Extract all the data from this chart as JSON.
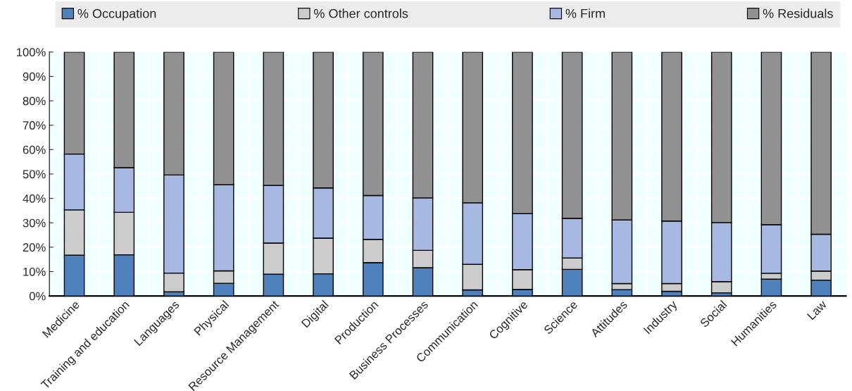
{
  "chart_data": {
    "type": "bar",
    "stacked": true,
    "categories": [
      "Medicine",
      "Training and education",
      "Languages",
      "Physical",
      "Resource Management",
      "Digital",
      "Production",
      "Business Processes",
      "Communication",
      "Cognitive",
      "Science",
      "Attitudes",
      "Industry",
      "Social",
      "Humanities",
      "Law"
    ],
    "series": [
      {
        "name": "% Occupation",
        "color": "#4f81bd",
        "values": [
          16.7,
          16.9,
          1.7,
          5.2,
          8.9,
          9.1,
          13.7,
          11.6,
          2.5,
          2.7,
          10.9,
          2.6,
          1.9,
          1.3,
          6.9,
          6.5
        ]
      },
      {
        "name": "% Other controls",
        "color": "#cccccc",
        "values": [
          18.6,
          17.4,
          7.7,
          5.1,
          12.8,
          14.6,
          9.5,
          7.1,
          10.5,
          8.1,
          4.7,
          2.5,
          3.2,
          4.6,
          2.4,
          3.7
        ]
      },
      {
        "name": "% Firm",
        "color": "#a7b8e3",
        "values": [
          22.9,
          18.3,
          40.2,
          35.3,
          23.6,
          20.6,
          18.0,
          21.5,
          25.2,
          23.0,
          16.2,
          26.1,
          25.6,
          24.2,
          19.9,
          15.1
        ]
      },
      {
        "name": "% Residuals",
        "color": "#919191",
        "values": [
          41.8,
          47.4,
          50.4,
          54.4,
          54.7,
          55.7,
          58.8,
          59.8,
          61.8,
          66.2,
          68.2,
          68.8,
          69.3,
          69.9,
          70.8,
          74.7
        ]
      }
    ],
    "ylim": [
      0,
      100
    ],
    "yticks": [
      {
        "value": 0,
        "label": "0%"
      },
      {
        "value": 10,
        "label": "10%"
      },
      {
        "value": 20,
        "label": "20%"
      },
      {
        "value": 30,
        "label": "30%"
      },
      {
        "value": 40,
        "label": "40%"
      },
      {
        "value": 50,
        "label": "50%"
      },
      {
        "value": 60,
        "label": "60%"
      },
      {
        "value": 70,
        "label": "70%"
      },
      {
        "value": 80,
        "label": "80%"
      },
      {
        "value": 90,
        "label": "90%"
      },
      {
        "value": 100,
        "label": "100%"
      }
    ],
    "grid": "y",
    "legend": "top"
  }
}
